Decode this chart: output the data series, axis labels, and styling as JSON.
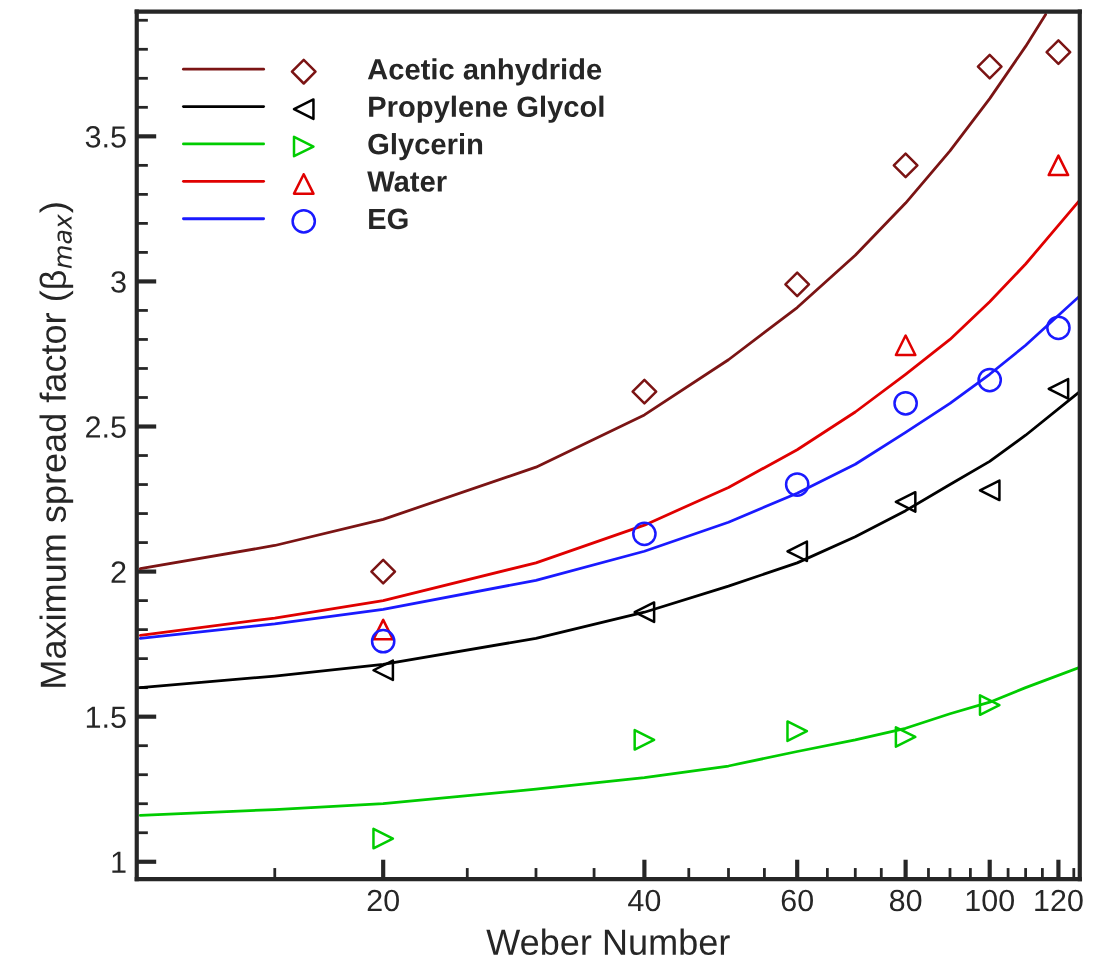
{
  "chart_data": {
    "type": "scatter",
    "xlabel": "Weber Number",
    "ylabel": "Maximum spread factor (β$_{max}$)",
    "log": "x",
    "xlim": [
      10.4,
      127
    ],
    "xticks": [
      20,
      40,
      60,
      80,
      100,
      120
    ],
    "ylim": [
      0.94,
      3.93
    ],
    "yticks": [
      1,
      1.5,
      2,
      2.5,
      3,
      3.5
    ],
    "grid": false,
    "legend": "top left",
    "series": [
      {
        "name": "Acetic anhydride",
        "marker": "diamond",
        "color": "#7b1414",
        "x": [
          20,
          40,
          60,
          80,
          100,
          120
        ],
        "values": [
          2.0,
          2.62,
          2.99,
          3.4,
          3.74,
          3.79
        ]
      },
      {
        "name": "Propylene Glycol",
        "marker": "triangle_left",
        "color": "#000000",
        "x": [
          20,
          40,
          60,
          80,
          100,
          120
        ],
        "values": [
          1.66,
          1.86,
          2.07,
          2.24,
          2.28,
          2.63
        ]
      },
      {
        "name": "Glycerin",
        "marker": "triangle_right",
        "color": "#00cc00",
        "x": [
          20,
          40,
          60,
          80,
          100
        ],
        "values": [
          1.08,
          1.42,
          1.45,
          1.43,
          1.54
        ]
      },
      {
        "name": "Water",
        "marker": "triangle",
        "color": "#e00000",
        "x": [
          20,
          80,
          120
        ],
        "values": [
          1.8,
          2.78,
          3.4
        ]
      },
      {
        "name": "EG",
        "marker": "circle",
        "color": "#1a1aff",
        "x": [
          20,
          40,
          60,
          80,
          100,
          120
        ],
        "values": [
          1.76,
          2.13,
          2.3,
          2.58,
          2.66,
          2.84
        ]
      },
      {
        "type": "line",
        "color": "#7b1414",
        "x": [
          10.5,
          15,
          20,
          30,
          40,
          50,
          60,
          70,
          80,
          90,
          100,
          110,
          116
        ],
        "values": [
          2.01,
          2.09,
          2.18,
          2.36,
          2.54,
          2.73,
          2.91,
          3.09,
          3.27,
          3.45,
          3.63,
          3.81,
          3.92
        ]
      },
      {
        "type": "line",
        "color": "#000000",
        "x": [
          10.5,
          15,
          20,
          30,
          40,
          50,
          60,
          70,
          80,
          90,
          100,
          110,
          127
        ],
        "values": [
          1.6,
          1.64,
          1.68,
          1.77,
          1.86,
          1.95,
          2.03,
          2.12,
          2.21,
          2.3,
          2.38,
          2.47,
          2.62
        ]
      },
      {
        "type": "line",
        "color": "#00cc00",
        "x": [
          10.5,
          15,
          20,
          30,
          40,
          50,
          60,
          70,
          80,
          90,
          100,
          110,
          127
        ],
        "values": [
          1.16,
          1.18,
          1.2,
          1.25,
          1.29,
          1.33,
          1.38,
          1.42,
          1.46,
          1.51,
          1.55,
          1.6,
          1.67
        ]
      },
      {
        "type": "line",
        "color": "#e00000",
        "x": [
          10.5,
          15,
          20,
          30,
          40,
          50,
          60,
          70,
          80,
          90,
          100,
          110,
          127
        ],
        "values": [
          1.78,
          1.84,
          1.9,
          2.03,
          2.16,
          2.29,
          2.42,
          2.55,
          2.68,
          2.8,
          2.93,
          3.06,
          3.28
        ]
      },
      {
        "type": "line",
        "color": "#1a1aff",
        "x": [
          10.5,
          15,
          20,
          30,
          40,
          50,
          60,
          70,
          80,
          90,
          100,
          110,
          127
        ],
        "values": [
          1.77,
          1.82,
          1.87,
          1.97,
          2.07,
          2.17,
          2.27,
          2.37,
          2.48,
          2.58,
          2.68,
          2.78,
          2.95
        ]
      }
    ]
  }
}
